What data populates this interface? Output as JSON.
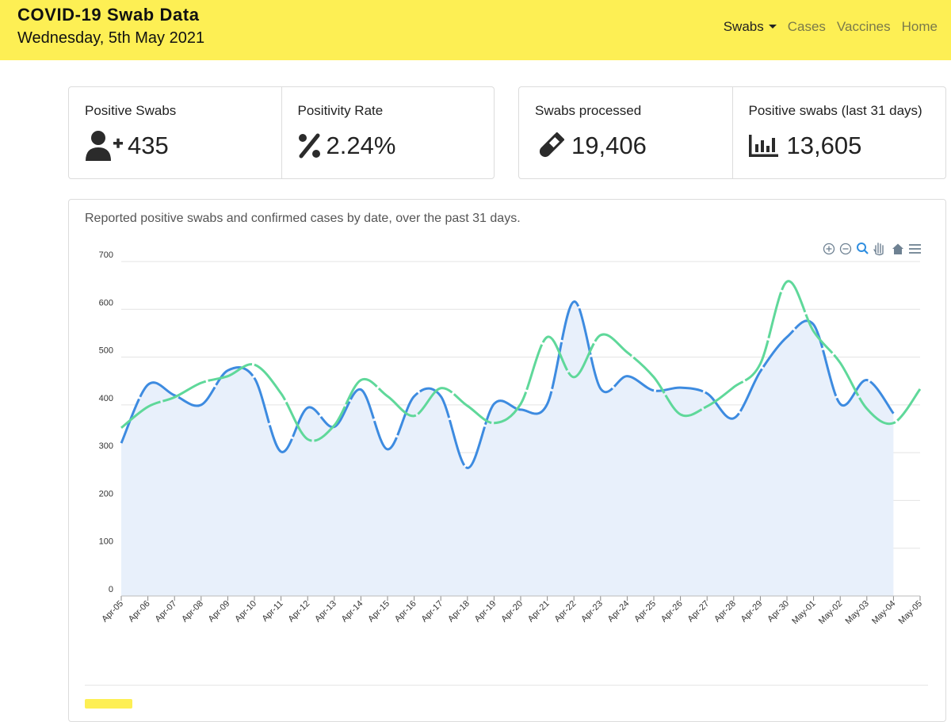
{
  "header": {
    "title": "COVID-19 Swab Data",
    "date": "Wednesday, 5th May 2021",
    "bg_color": "#fdef54"
  },
  "nav": {
    "items": [
      {
        "label": "Swabs",
        "active": true,
        "dropdown": true
      },
      {
        "label": "Cases",
        "active": false
      },
      {
        "label": "Vaccines",
        "active": false
      },
      {
        "label": "Home",
        "active": false
      }
    ]
  },
  "stats": {
    "positive_swabs": {
      "label": "Positive Swabs",
      "value": "435",
      "icon": "user-plus-icon"
    },
    "positivity_rate": {
      "label": "Positivity Rate",
      "value": "2.24%",
      "icon": "percent-icon"
    },
    "swabs_processed": {
      "label": "Swabs processed",
      "value": "19,406",
      "icon": "test-tube-icon"
    },
    "positive_31": {
      "label": "Positive swabs (last 31 days)",
      "value": "13,605",
      "icon": "bar-chart-icon"
    }
  },
  "chart_card": {
    "caption": "Reported positive swabs and confirmed cases by date, over the past 31 days.",
    "toolbar": [
      "zoom-in-icon",
      "zoom-out-icon",
      "magnifier-icon",
      "pan-hand-icon",
      "reset-home-icon",
      "menu-icon"
    ]
  },
  "chart_data": {
    "type": "area",
    "x": [
      "Apr-05",
      "Apr-06",
      "Apr-07",
      "Apr-08",
      "Apr-09",
      "Apr-10",
      "Apr-11",
      "Apr-12",
      "Apr-13",
      "Apr-14",
      "Apr-15",
      "Apr-16",
      "Apr-17",
      "Apr-18",
      "Apr-19",
      "Apr-20",
      "Apr-21",
      "Apr-22",
      "Apr-23",
      "Apr-24",
      "Apr-25",
      "Apr-26",
      "Apr-27",
      "Apr-28",
      "Apr-29",
      "Apr-30",
      "May-01",
      "May-02",
      "May-03",
      "May-04",
      "May-05"
    ],
    "series": [
      {
        "color": "#3d8be0",
        "fill": "#e8f0fb",
        "dashed": true,
        "values": [
          320,
          442,
          420,
          400,
          472,
          456,
          302,
          394,
          354,
          432,
          307,
          418,
          418,
          268,
          402,
          390,
          402,
          616,
          434,
          460,
          430,
          436,
          424,
          372,
          470,
          542,
          568,
          402,
          452,
          382,
          null
        ]
      },
      {
        "color": "#5fd89a",
        "dashed": true,
        "values": [
          352,
          396,
          416,
          446,
          460,
          484,
          424,
          328,
          357,
          452,
          418,
          377,
          435,
          398,
          362,
          402,
          542,
          458,
          546,
          510,
          458,
          380,
          397,
          437,
          486,
          658,
          554,
          488,
          392,
          362,
          433
        ]
      }
    ],
    "ylim": [
      0,
      700
    ],
    "yticks": [
      0,
      100,
      200,
      300,
      400,
      500,
      600,
      700
    ],
    "grid": true
  }
}
